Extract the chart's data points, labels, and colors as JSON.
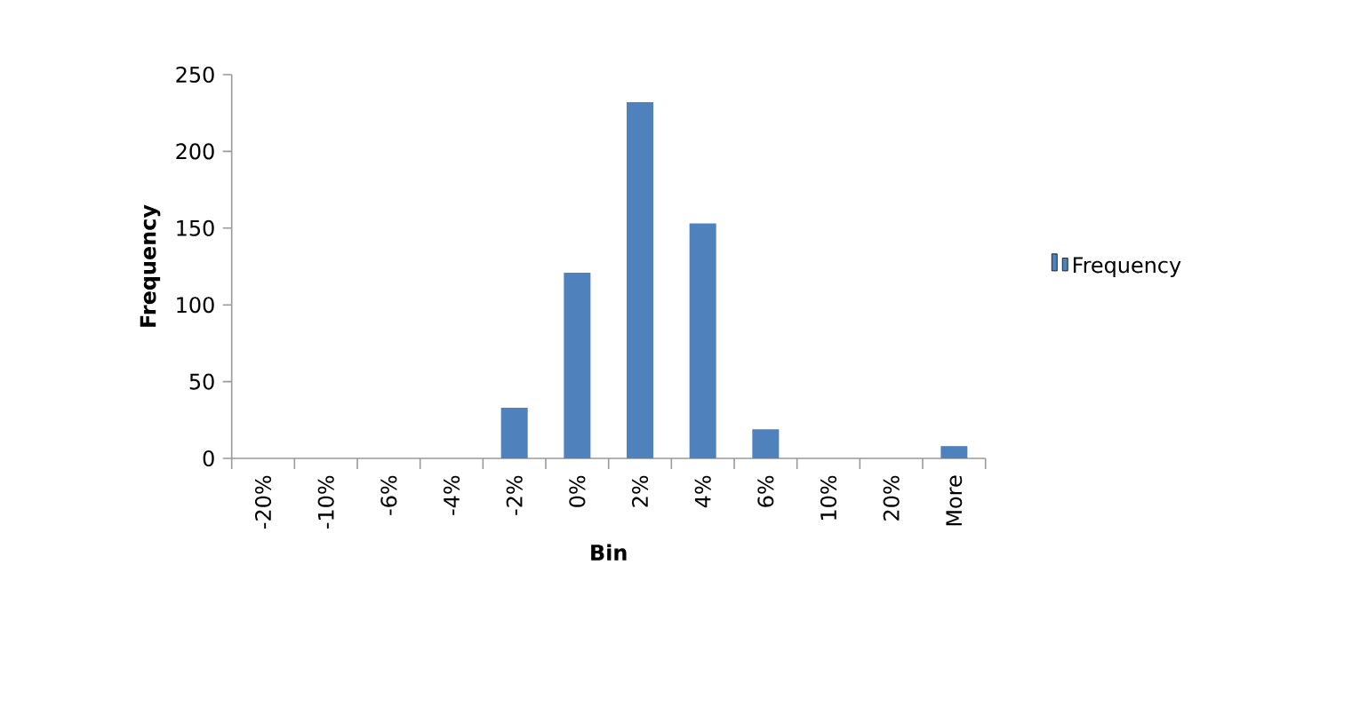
{
  "chart_data": {
    "type": "bar",
    "xlabel": "Bin",
    "ylabel": "Frequency",
    "categories": [
      "-20%",
      "-10%",
      "-6%",
      "-4%",
      "-2%",
      "0%",
      "2%",
      "4%",
      "6%",
      "10%",
      "20%",
      "More"
    ],
    "series": [
      {
        "name": "Frequency",
        "color": "#4f81bd",
        "values": [
          0,
          0,
          0,
          0,
          33,
          121,
          232,
          153,
          19,
          0,
          0,
          8
        ]
      }
    ],
    "ylim": [
      0,
      250
    ],
    "yticks": [
      0,
      50,
      100,
      150,
      200,
      250
    ],
    "legend": "right",
    "grid": false
  }
}
